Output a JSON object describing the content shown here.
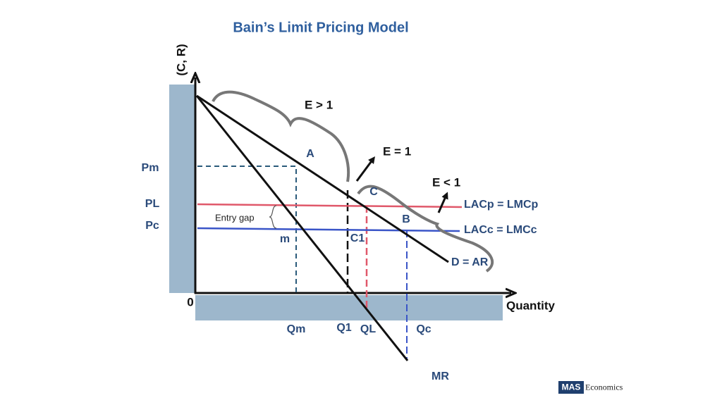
{
  "title": "Bain’s Limit Pricing Model",
  "axes": {
    "y_label": "(C, R)",
    "x_label": "Quantity",
    "origin": "0"
  },
  "price_labels": [
    "Pm",
    "PL",
    "Pc"
  ],
  "quantity_labels": [
    "Qm",
    "Q1",
    "QL",
    "Qc"
  ],
  "points": [
    "A",
    "C",
    "B",
    "m",
    "C1"
  ],
  "elasticity": [
    "E > 1",
    "E = 1",
    "E < 1"
  ],
  "curves": {
    "limit_cost": "LACp = LMCp",
    "competitive_cost": "LACc = LMCc",
    "demand": "D = AR",
    "marginal_revenue": "MR"
  },
  "entry_gap": "Entry gap",
  "brand": {
    "mark": "MAS",
    "name": "Economics"
  }
}
